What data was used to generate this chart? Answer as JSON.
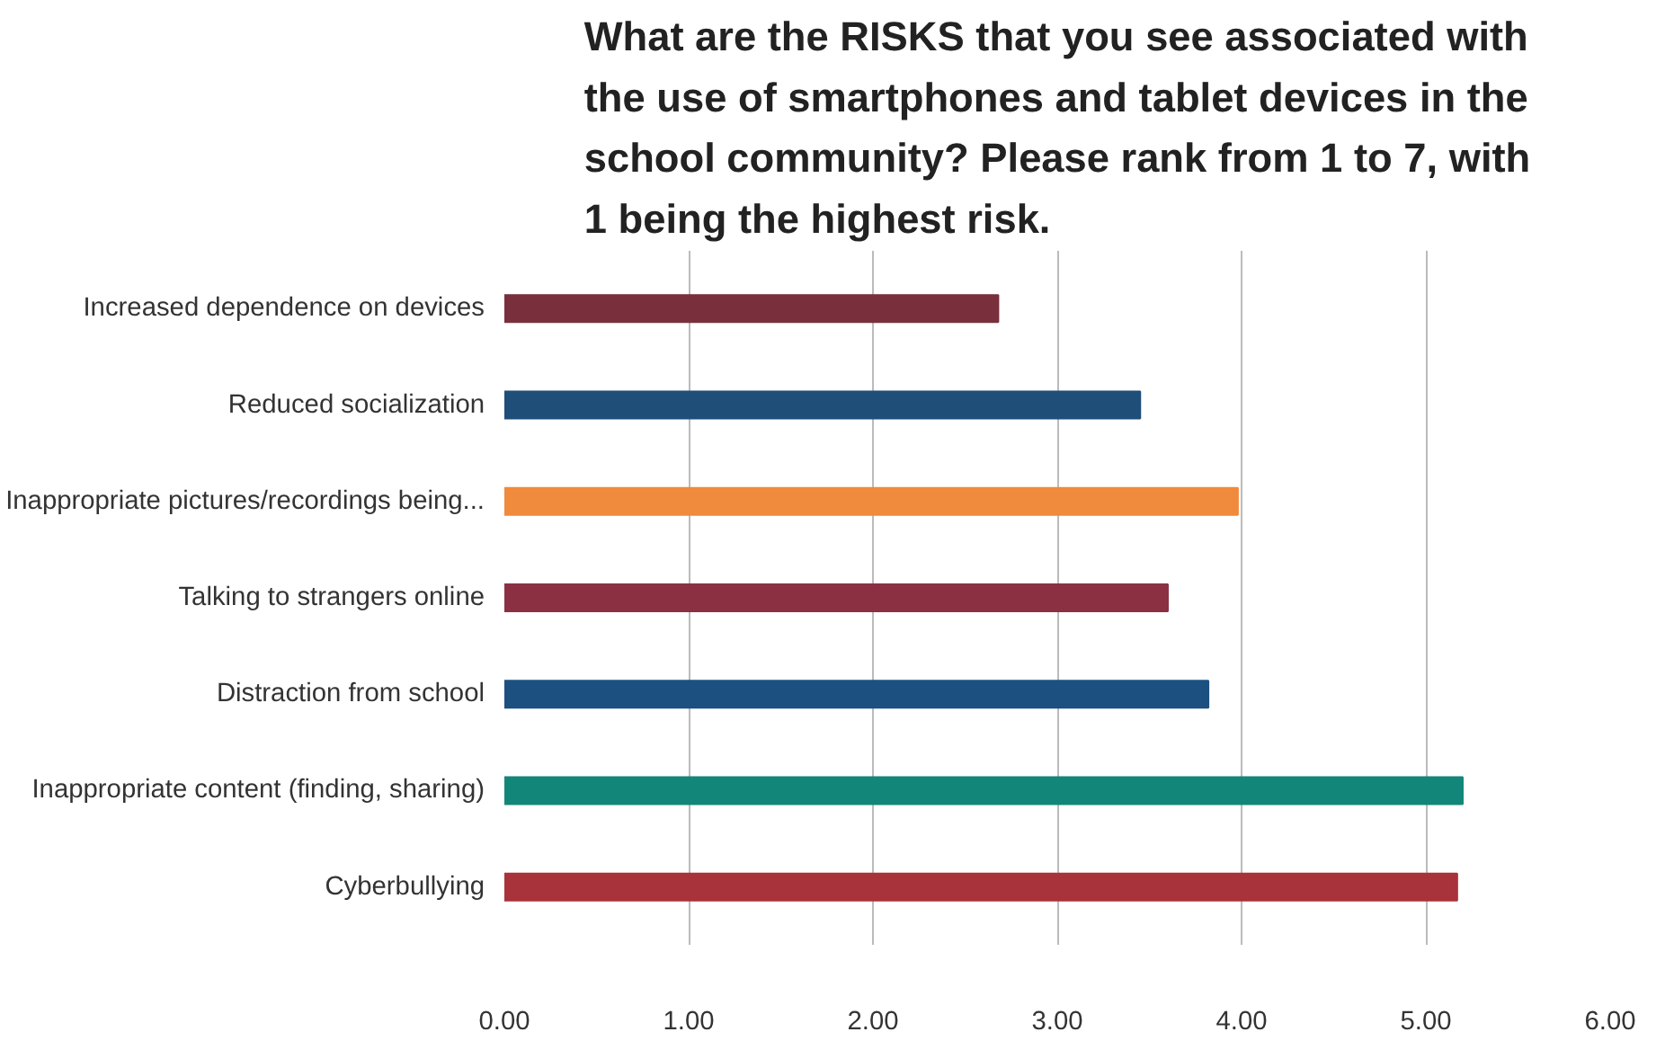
{
  "chart_data": {
    "type": "bar",
    "orientation": "horizontal",
    "title": "What are the RISKS that you see associated with\nthe use of smartphones and tablet devices in the\nschool community? Please rank from 1 to 7, with\n1 being the highest risk.",
    "categories": [
      "Increased dependence on devices",
      "Reduced socialization",
      "Inappropriate pictures/recordings being...",
      "Talking to strangers online",
      "Distraction from school",
      "Inappropriate content (finding, sharing)",
      "Cyberbullying"
    ],
    "values": [
      2.68,
      3.45,
      3.98,
      3.6,
      3.82,
      5.2,
      5.17
    ],
    "colors": [
      "#7a2f3c",
      "#1f4e79",
      "#f08a3c",
      "#8b3043",
      "#1c5080",
      "#13867a",
      "#a8333a"
    ],
    "xlim": [
      0,
      6
    ],
    "xticks": [
      {
        "value": 0,
        "label": "0.00"
      },
      {
        "value": 1,
        "label": "1.00"
      },
      {
        "value": 2,
        "label": "2.00"
      },
      {
        "value": 3,
        "label": "3.00"
      },
      {
        "value": 4,
        "label": "4.00"
      },
      {
        "value": 5,
        "label": "5.00"
      },
      {
        "value": 6,
        "label": "6.00"
      }
    ],
    "grid": "x"
  }
}
